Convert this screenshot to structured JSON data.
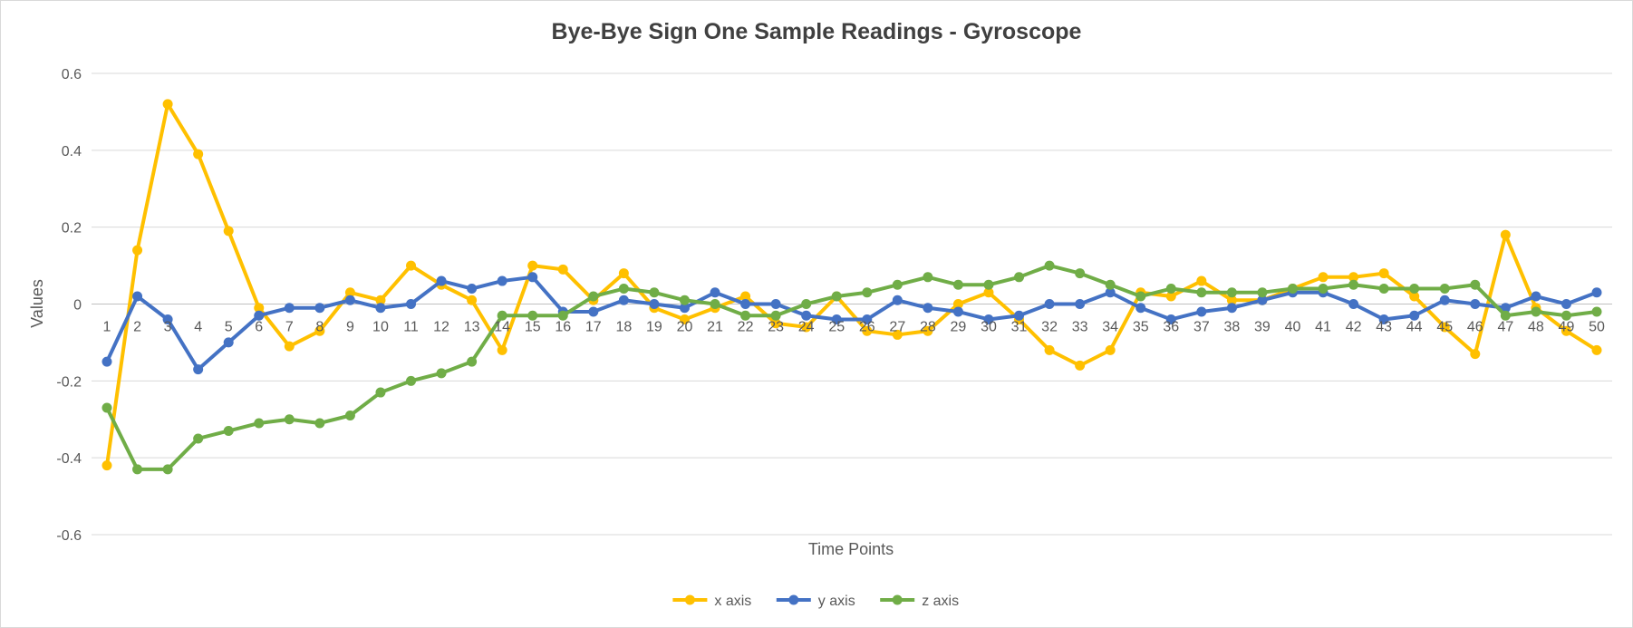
{
  "chart_data": {
    "type": "line",
    "title": "Bye-Bye Sign One Sample Readings - Gyroscope",
    "xlabel": "Time Points",
    "ylabel": "Values",
    "ylim": [
      -0.6,
      0.6
    ],
    "yticks": [
      -0.6,
      -0.4,
      -0.2,
      0,
      0.2,
      0.4,
      0.6
    ],
    "ytick_labels": [
      "-0.6",
      "-0.4",
      "-0.2",
      "0",
      "0.2",
      "0.4",
      "0.6"
    ],
    "grid": true,
    "legend_position": "bottom",
    "categories": [
      "1",
      "2",
      "3",
      "4",
      "5",
      "6",
      "7",
      "8",
      "9",
      "10",
      "11",
      "12",
      "13",
      "14",
      "15",
      "16",
      "17",
      "18",
      "19",
      "20",
      "21",
      "22",
      "23",
      "24",
      "25",
      "26",
      "27",
      "28",
      "29",
      "30",
      "31",
      "32",
      "33",
      "34",
      "35",
      "36",
      "37",
      "38",
      "39",
      "40",
      "41",
      "42",
      "43",
      "44",
      "45",
      "46",
      "47",
      "48",
      "49",
      "50"
    ],
    "series": [
      {
        "name": "x axis",
        "color": "#FFC000",
        "values": [
          -0.42,
          0.14,
          0.52,
          0.39,
          0.19,
          -0.01,
          -0.11,
          -0.07,
          0.03,
          0.01,
          0.1,
          0.05,
          0.01,
          -0.12,
          0.1,
          0.09,
          0.01,
          0.08,
          -0.01,
          -0.04,
          -0.01,
          0.02,
          -0.05,
          -0.06,
          0.02,
          -0.07,
          -0.08,
          -0.07,
          0.0,
          0.03,
          -0.04,
          -0.12,
          -0.16,
          -0.12,
          0.03,
          0.02,
          0.06,
          0.01,
          0.01,
          0.04,
          0.07,
          0.07,
          0.08,
          0.02,
          -0.06,
          -0.13,
          0.18,
          -0.01,
          -0.07,
          -0.12
        ]
      },
      {
        "name": "y axis",
        "color": "#4472C4",
        "values": [
          -0.15,
          0.02,
          -0.04,
          -0.17,
          -0.1,
          -0.03,
          -0.01,
          -0.01,
          0.01,
          -0.01,
          0.0,
          0.06,
          0.04,
          0.06,
          0.07,
          -0.02,
          -0.02,
          0.01,
          0.0,
          -0.01,
          0.03,
          0.0,
          0.0,
          -0.03,
          -0.04,
          -0.04,
          0.01,
          -0.01,
          -0.02,
          -0.04,
          -0.03,
          0.0,
          0.0,
          0.03,
          -0.01,
          -0.04,
          -0.02,
          -0.01,
          0.01,
          0.03,
          0.03,
          0.0,
          -0.04,
          -0.03,
          0.01,
          0.0,
          -0.01,
          0.02,
          0.0,
          0.03
        ]
      },
      {
        "name": "z axis",
        "color": "#70AD47",
        "values": [
          -0.27,
          -0.43,
          -0.43,
          -0.35,
          -0.33,
          -0.31,
          -0.3,
          -0.31,
          -0.29,
          -0.23,
          -0.2,
          -0.18,
          -0.15,
          -0.03,
          -0.03,
          -0.03,
          0.02,
          0.04,
          0.03,
          0.01,
          0.0,
          -0.03,
          -0.03,
          0.0,
          0.02,
          0.03,
          0.05,
          0.07,
          0.05,
          0.05,
          0.07,
          0.1,
          0.08,
          0.05,
          0.02,
          0.04,
          0.03,
          0.03,
          0.03,
          0.04,
          0.04,
          0.05,
          0.04,
          0.04,
          0.04,
          0.05,
          -0.03,
          -0.02,
          -0.03,
          -0.02
        ]
      }
    ]
  }
}
